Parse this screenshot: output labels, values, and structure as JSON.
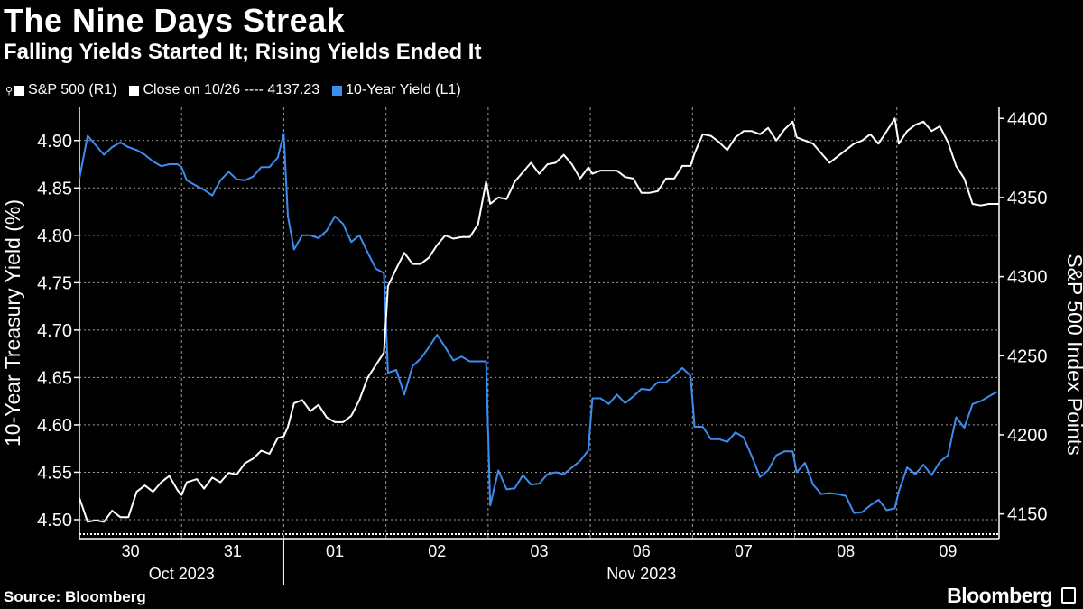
{
  "title": "The Nine Days Streak",
  "subtitle": "Falling Yields Started It;  Rising Yields Ended It",
  "legend": {
    "sp500": "S&P 500 (R1)",
    "close": "Close on 10/26 ---- 4137.23",
    "yield": "10-Year Yield (L1)"
  },
  "source": "Source: Bloomberg",
  "brand": "Bloomberg",
  "colors": {
    "yield": "#3b8df0",
    "sp500": "#ffffff",
    "grid": "#9a9a9a",
    "background": "#000000"
  },
  "chart_data": {
    "type": "line",
    "title": "The Nine Days Streak",
    "ylabel_left": "10-Year Treasury Yield (%)",
    "ylabel_right": "S&P 500 Index Points",
    "ylim_left": [
      4.48,
      4.935
    ],
    "yticks_left": [
      "4.50",
      "4.55",
      "4.60",
      "4.65",
      "4.70",
      "4.75",
      "4.80",
      "4.85",
      "4.90"
    ],
    "ylim_right": [
      4134.4,
      4407
    ],
    "yticks_right": [
      "4150",
      "4200",
      "4250",
      "4300",
      "4350",
      "4400"
    ],
    "reference_line": {
      "label": "Close on 10/26",
      "value": 4137.23
    },
    "x_days": [
      "30",
      "31",
      "01",
      "02",
      "03",
      "06",
      "07",
      "08",
      "09"
    ],
    "month_labels": [
      "Oct 2023",
      "Nov 2023"
    ],
    "x_range": [
      0,
      9.0
    ],
    "series": [
      {
        "name": "10-Year Yield (L1)",
        "axis": "left",
        "points": [
          [
            0.0,
            4.86
          ],
          [
            0.08,
            4.905
          ],
          [
            0.16,
            4.895
          ],
          [
            0.24,
            4.885
          ],
          [
            0.32,
            4.893
          ],
          [
            0.4,
            4.898
          ],
          [
            0.48,
            4.893
          ],
          [
            0.56,
            4.89
          ],
          [
            0.64,
            4.885
          ],
          [
            0.72,
            4.878
          ],
          [
            0.8,
            4.873
          ],
          [
            0.88,
            4.875
          ],
          [
            0.96,
            4.875
          ],
          [
            1.0,
            4.872
          ],
          [
            1.05,
            4.858
          ],
          [
            1.15,
            4.852
          ],
          [
            1.22,
            4.848
          ],
          [
            1.3,
            4.842
          ],
          [
            1.38,
            4.858
          ],
          [
            1.46,
            4.867
          ],
          [
            1.54,
            4.859
          ],
          [
            1.62,
            4.858
          ],
          [
            1.7,
            4.862
          ],
          [
            1.78,
            4.872
          ],
          [
            1.86,
            4.872
          ],
          [
            1.94,
            4.882
          ],
          [
            2.0,
            4.907
          ],
          [
            2.04,
            4.82
          ],
          [
            2.1,
            4.785
          ],
          [
            2.18,
            4.8
          ],
          [
            2.26,
            4.8
          ],
          [
            2.34,
            4.797
          ],
          [
            2.42,
            4.805
          ],
          [
            2.5,
            4.82
          ],
          [
            2.58,
            4.812
          ],
          [
            2.66,
            4.793
          ],
          [
            2.74,
            4.8
          ],
          [
            2.82,
            4.782
          ],
          [
            2.9,
            4.765
          ],
          [
            2.98,
            4.76
          ],
          [
            3.02,
            4.655
          ],
          [
            3.1,
            4.658
          ],
          [
            3.18,
            4.632
          ],
          [
            3.26,
            4.662
          ],
          [
            3.34,
            4.67
          ],
          [
            3.42,
            4.682
          ],
          [
            3.5,
            4.695
          ],
          [
            3.58,
            4.682
          ],
          [
            3.66,
            4.668
          ],
          [
            3.74,
            4.672
          ],
          [
            3.82,
            4.667
          ],
          [
            3.9,
            4.667
          ],
          [
            3.98,
            4.667
          ],
          [
            4.02,
            4.515
          ],
          [
            4.1,
            4.552
          ],
          [
            4.18,
            4.532
          ],
          [
            4.26,
            4.533
          ],
          [
            4.34,
            4.547
          ],
          [
            4.42,
            4.537
          ],
          [
            4.5,
            4.538
          ],
          [
            4.58,
            4.548
          ],
          [
            4.66,
            4.55
          ],
          [
            4.74,
            4.548
          ],
          [
            4.82,
            4.555
          ],
          [
            4.9,
            4.562
          ],
          [
            4.98,
            4.573
          ],
          [
            5.02,
            4.628
          ],
          [
            5.1,
            4.628
          ],
          [
            5.18,
            4.622
          ],
          [
            5.26,
            4.632
          ],
          [
            5.34,
            4.623
          ],
          [
            5.42,
            4.63
          ],
          [
            5.5,
            4.638
          ],
          [
            5.58,
            4.637
          ],
          [
            5.66,
            4.645
          ],
          [
            5.74,
            4.645
          ],
          [
            5.82,
            4.652
          ],
          [
            5.9,
            4.66
          ],
          [
            5.98,
            4.652
          ],
          [
            6.02,
            4.598
          ],
          [
            6.1,
            4.598
          ],
          [
            6.18,
            4.585
          ],
          [
            6.26,
            4.585
          ],
          [
            6.34,
            4.582
          ],
          [
            6.42,
            4.592
          ],
          [
            6.5,
            4.587
          ],
          [
            6.58,
            4.567
          ],
          [
            6.66,
            4.545
          ],
          [
            6.74,
            4.552
          ],
          [
            6.82,
            4.568
          ],
          [
            6.9,
            4.572
          ],
          [
            6.98,
            4.572
          ],
          [
            7.02,
            4.55
          ],
          [
            7.1,
            4.56
          ],
          [
            7.18,
            4.537
          ],
          [
            7.26,
            4.527
          ],
          [
            7.34,
            4.528
          ],
          [
            7.42,
            4.527
          ],
          [
            7.5,
            4.525
          ],
          [
            7.58,
            4.507
          ],
          [
            7.66,
            4.508
          ],
          [
            7.74,
            4.515
          ],
          [
            7.82,
            4.521
          ],
          [
            7.9,
            4.51
          ],
          [
            7.98,
            4.512
          ],
          [
            8.02,
            4.53
          ],
          [
            8.1,
            4.555
          ],
          [
            8.18,
            4.548
          ],
          [
            8.26,
            4.558
          ],
          [
            8.34,
            4.547
          ],
          [
            8.42,
            4.561
          ],
          [
            8.5,
            4.568
          ],
          [
            8.58,
            4.608
          ],
          [
            8.66,
            4.597
          ],
          [
            8.74,
            4.622
          ],
          [
            8.82,
            4.625
          ],
          [
            8.9,
            4.63
          ],
          [
            8.98,
            4.635
          ]
        ]
      },
      {
        "name": "S&P 500 (R1)",
        "axis": "right",
        "points": [
          [
            0.0,
            4160
          ],
          [
            0.08,
            4145
          ],
          [
            0.16,
            4146
          ],
          [
            0.24,
            4145
          ],
          [
            0.32,
            4152
          ],
          [
            0.4,
            4148
          ],
          [
            0.48,
            4148
          ],
          [
            0.56,
            4164
          ],
          [
            0.64,
            4168
          ],
          [
            0.72,
            4164
          ],
          [
            0.8,
            4170
          ],
          [
            0.88,
            4174
          ],
          [
            0.96,
            4165
          ],
          [
            1.0,
            4162
          ],
          [
            1.05,
            4170
          ],
          [
            1.15,
            4172
          ],
          [
            1.22,
            4166
          ],
          [
            1.3,
            4173
          ],
          [
            1.38,
            4170
          ],
          [
            1.46,
            4176
          ],
          [
            1.54,
            4175
          ],
          [
            1.62,
            4182
          ],
          [
            1.7,
            4185
          ],
          [
            1.78,
            4190
          ],
          [
            1.86,
            4188
          ],
          [
            1.94,
            4198
          ],
          [
            2.0,
            4199
          ],
          [
            2.04,
            4205
          ],
          [
            2.1,
            4220
          ],
          [
            2.18,
            4222
          ],
          [
            2.26,
            4215
          ],
          [
            2.34,
            4219
          ],
          [
            2.42,
            4211
          ],
          [
            2.5,
            4208
          ],
          [
            2.58,
            4208
          ],
          [
            2.66,
            4212
          ],
          [
            2.74,
            4222
          ],
          [
            2.82,
            4236
          ],
          [
            2.9,
            4244
          ],
          [
            2.98,
            4252
          ],
          [
            3.02,
            4294
          ],
          [
            3.1,
            4305
          ],
          [
            3.18,
            4315
          ],
          [
            3.26,
            4308
          ],
          [
            3.34,
            4308
          ],
          [
            3.42,
            4312
          ],
          [
            3.5,
            4320
          ],
          [
            3.58,
            4326
          ],
          [
            3.66,
            4324
          ],
          [
            3.74,
            4325
          ],
          [
            3.82,
            4325
          ],
          [
            3.9,
            4333
          ],
          [
            3.98,
            4360
          ],
          [
            4.02,
            4346
          ],
          [
            4.1,
            4350
          ],
          [
            4.18,
            4349
          ],
          [
            4.26,
            4360
          ],
          [
            4.34,
            4366
          ],
          [
            4.42,
            4372
          ],
          [
            4.5,
            4365
          ],
          [
            4.58,
            4371
          ],
          [
            4.66,
            4372
          ],
          [
            4.74,
            4377
          ],
          [
            4.82,
            4371
          ],
          [
            4.9,
            4362
          ],
          [
            4.98,
            4369
          ],
          [
            5.02,
            4365
          ],
          [
            5.1,
            4367
          ],
          [
            5.18,
            4367
          ],
          [
            5.26,
            4367
          ],
          [
            5.34,
            4363
          ],
          [
            5.42,
            4362
          ],
          [
            5.5,
            4353
          ],
          [
            5.58,
            4353
          ],
          [
            5.66,
            4354
          ],
          [
            5.74,
            4362
          ],
          [
            5.82,
            4362
          ],
          [
            5.9,
            4370
          ],
          [
            5.98,
            4370
          ],
          [
            6.02,
            4378
          ],
          [
            6.1,
            4390
          ],
          [
            6.18,
            4389
          ],
          [
            6.26,
            4385
          ],
          [
            6.34,
            4380
          ],
          [
            6.42,
            4388
          ],
          [
            6.5,
            4392
          ],
          [
            6.58,
            4392
          ],
          [
            6.66,
            4390
          ],
          [
            6.74,
            4394
          ],
          [
            6.82,
            4386
          ],
          [
            6.9,
            4393
          ],
          [
            6.98,
            4398
          ],
          [
            7.02,
            4388
          ],
          [
            7.1,
            4386
          ],
          [
            7.18,
            4384
          ],
          [
            7.26,
            4378
          ],
          [
            7.34,
            4372
          ],
          [
            7.42,
            4376
          ],
          [
            7.5,
            4380
          ],
          [
            7.58,
            4384
          ],
          [
            7.66,
            4386
          ],
          [
            7.74,
            4390
          ],
          [
            7.82,
            4384
          ],
          [
            7.9,
            4392
          ],
          [
            7.98,
            4400
          ],
          [
            8.02,
            4384
          ],
          [
            8.1,
            4392
          ],
          [
            8.18,
            4396
          ],
          [
            8.26,
            4398
          ],
          [
            8.34,
            4392
          ],
          [
            8.42,
            4395
          ],
          [
            8.5,
            4385
          ],
          [
            8.58,
            4370
          ],
          [
            8.66,
            4362
          ],
          [
            8.74,
            4346
          ],
          [
            8.82,
            4345
          ],
          [
            8.9,
            4346
          ],
          [
            9.0,
            4346
          ]
        ]
      }
    ]
  }
}
